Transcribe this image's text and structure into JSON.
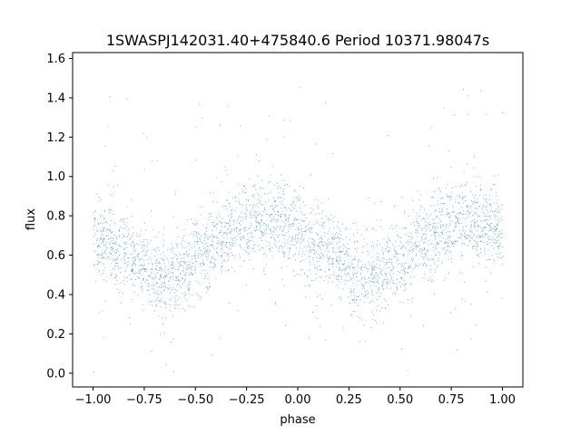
{
  "chart_data": {
    "type": "scatter",
    "title": "1SWASPJ142031.40+475840.6 Period 10371.98047s",
    "xlabel": "phase",
    "ylabel": "flux",
    "xlim": [
      -1.1,
      1.1
    ],
    "ylim": [
      -0.07,
      1.63
    ],
    "x_ticks": [
      -1.0,
      -0.75,
      -0.5,
      -0.25,
      0.0,
      0.25,
      0.5,
      0.75,
      1.0
    ],
    "x_tick_labels": [
      "−1.00",
      "−0.75",
      "−0.50",
      "−0.25",
      "0.00",
      "0.25",
      "0.50",
      "0.75",
      "1.00"
    ],
    "y_ticks": [
      0.0,
      0.2,
      0.4,
      0.6,
      0.8,
      1.0,
      1.2,
      1.4,
      1.6
    ],
    "y_tick_labels": [
      "0.0",
      "0.2",
      "0.4",
      "0.6",
      "0.8",
      "1.0",
      "1.2",
      "1.4",
      "1.6"
    ],
    "grid": false,
    "point_color": "#1f77b4",
    "phase_range": [
      -1.0,
      1.0
    ],
    "series": [
      {
        "phase": [
          -1.0,
          -0.9,
          -0.8,
          -0.7,
          -0.6,
          -0.5,
          -0.4,
          -0.3,
          -0.2,
          -0.1,
          0.0,
          0.1,
          0.2,
          0.3,
          0.4,
          0.5,
          0.6,
          0.7,
          0.8,
          0.9,
          1.0
        ],
        "mean_flux": [
          0.7,
          0.65,
          0.58,
          0.5,
          0.5,
          0.58,
          0.66,
          0.73,
          0.78,
          0.77,
          0.72,
          0.65,
          0.58,
          0.5,
          0.5,
          0.58,
          0.66,
          0.73,
          0.78,
          0.77,
          0.72
        ]
      }
    ]
  }
}
